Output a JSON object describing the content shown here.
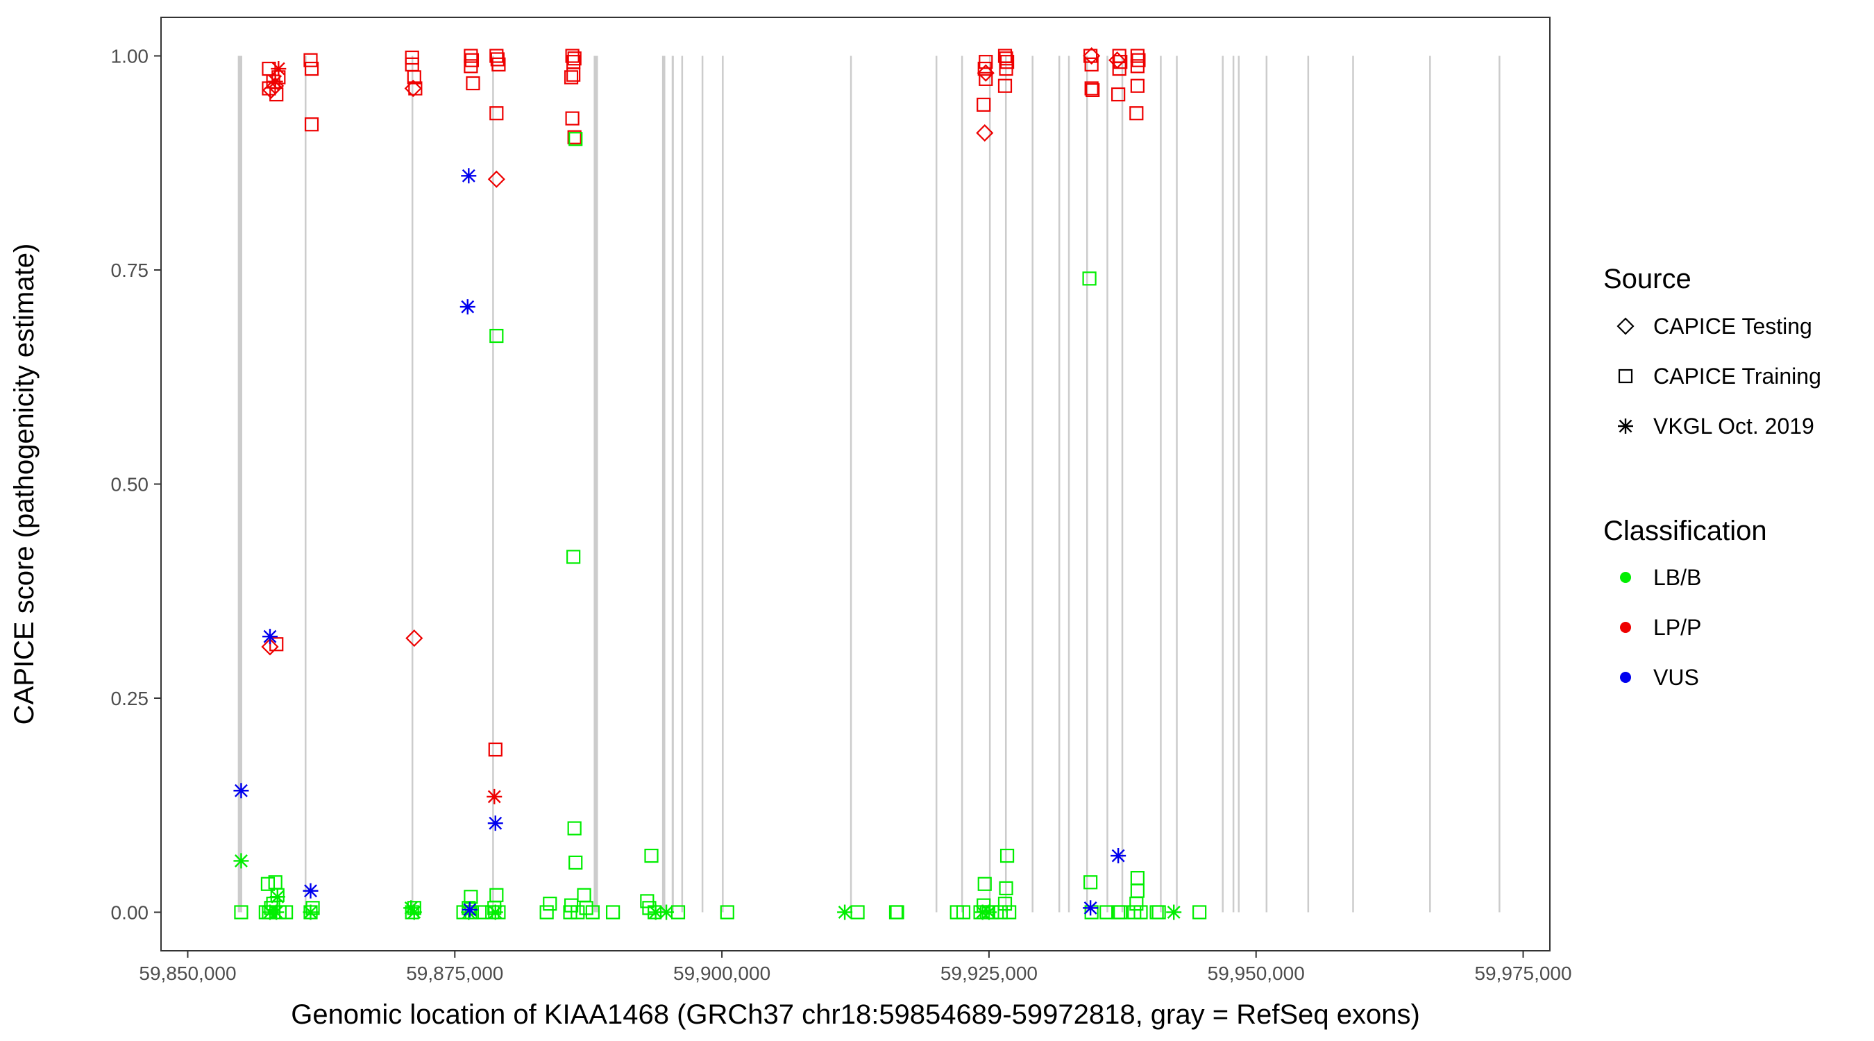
{
  "chart_data": {
    "type": "scatter",
    "xlabel": "Genomic location of KIAA1468 (GRCh37 chr18:59854689-59972818, gray = RefSeq exons)",
    "ylabel": "CAPICE score (pathogenicity estimate)",
    "xlim": [
      59847500,
      59977500
    ],
    "ylim": [
      -0.045,
      1.045
    ],
    "xticks": [
      59850000,
      59875000,
      59900000,
      59925000,
      59950000,
      59975000
    ],
    "xtick_labels": [
      "59,850,000",
      "59,875,000",
      "59,900,000",
      "59,925,000",
      "59,950,000",
      "59,975,000"
    ],
    "yticks": [
      0,
      0.25,
      0.5,
      0.75,
      1
    ],
    "ytick_labels": [
      "0.00",
      "0.25",
      "0.50",
      "0.75",
      "1.00"
    ],
    "grid": false,
    "legend_position": "right",
    "colors": {
      "LB/B": "#00ee00",
      "LP/P": "#ee0000",
      "VUS": "#0000ee",
      "exon": "#cccccc",
      "axis": "#333333"
    },
    "legend": {
      "source_title": "Source",
      "source_items": [
        {
          "label": "CAPICE Testing",
          "shape": "diamond"
        },
        {
          "label": "CAPICE Training",
          "shape": "square"
        },
        {
          "label": "VKGL Oct. 2019",
          "shape": "asterisk"
        }
      ],
      "classification_title": "Classification",
      "classification_items": [
        {
          "label": "LB/B",
          "color": "#00ee00"
        },
        {
          "label": "LP/P",
          "color": "#ee0000"
        },
        {
          "label": "VUS",
          "color": "#0000ee"
        }
      ]
    },
    "exons": [
      [
        59854689,
        59855100
      ],
      [
        59860950,
        59861100
      ],
      [
        59870950,
        59871050
      ],
      [
        59878500,
        59878600
      ],
      [
        59888000,
        59888400
      ],
      [
        59894400,
        59894700
      ],
      [
        59895300,
        59895500
      ],
      [
        59896200,
        59896350
      ],
      [
        59898100,
        59898200
      ],
      [
        59900000,
        59900100
      ],
      [
        59912000,
        59912150
      ],
      [
        59920000,
        59920100
      ],
      [
        59922400,
        59922500
      ],
      [
        59925000,
        59925150
      ],
      [
        59926500,
        59926600
      ],
      [
        59929000,
        59929100
      ],
      [
        59931500,
        59931650
      ],
      [
        59932400,
        59932500
      ],
      [
        59934100,
        59934200
      ],
      [
        59936000,
        59936100
      ],
      [
        59937400,
        59937550
      ],
      [
        59941000,
        59941100
      ],
      [
        59942500,
        59942600
      ],
      [
        59946800,
        59946900
      ],
      [
        59947800,
        59947900
      ],
      [
        59948300,
        59948400
      ],
      [
        59950900,
        59951000
      ],
      [
        59954800,
        59954900
      ],
      [
        59959000,
        59959100
      ],
      [
        59966200,
        59966300
      ],
      [
        59972700,
        59972818
      ]
    ],
    "series": [
      {
        "name": "LP/P",
        "points": [
          [
            59857800,
            0.96,
            "diamond"
          ],
          [
            59858200,
            0.965,
            "diamond"
          ],
          [
            59857700,
            0.31,
            "diamond"
          ],
          [
            59871100,
            0.962,
            "diamond"
          ],
          [
            59871200,
            0.32,
            "diamond"
          ],
          [
            59878900,
            0.856,
            "diamond"
          ],
          [
            59924600,
            0.91,
            "diamond"
          ],
          [
            59924700,
            0.98,
            "diamond"
          ],
          [
            59934600,
            1.0,
            "diamond"
          ],
          [
            59937000,
            0.995,
            "diamond"
          ],
          [
            59857600,
            0.985,
            "square"
          ],
          [
            59857600,
            0.962,
            "square"
          ],
          [
            59858000,
            0.97,
            "square"
          ],
          [
            59858300,
            0.955,
            "square"
          ],
          [
            59858500,
            0.975,
            "square"
          ],
          [
            59858300,
            0.313,
            "square"
          ],
          [
            59861500,
            0.995,
            "square"
          ],
          [
            59861600,
            0.985,
            "square"
          ],
          [
            59861600,
            0.92,
            "square"
          ],
          [
            59871000,
            0.998,
            "square"
          ],
          [
            59871000,
            0.99,
            "square"
          ],
          [
            59871200,
            0.975,
            "square"
          ],
          [
            59871300,
            0.962,
            "square"
          ],
          [
            59876500,
            1.0,
            "square"
          ],
          [
            59876600,
            0.995,
            "square"
          ],
          [
            59876500,
            0.988,
            "square"
          ],
          [
            59876700,
            0.968,
            "square"
          ],
          [
            59878900,
            1.0,
            "square"
          ],
          [
            59879000,
            0.996,
            "square"
          ],
          [
            59879100,
            0.99,
            "square"
          ],
          [
            59878900,
            0.933,
            "square"
          ],
          [
            59878800,
            0.19,
            "square"
          ],
          [
            59886000,
            1.0,
            "square"
          ],
          [
            59886200,
            0.997,
            "square"
          ],
          [
            59886100,
            0.993,
            "square"
          ],
          [
            59886100,
            0.978,
            "square"
          ],
          [
            59885900,
            0.975,
            "square"
          ],
          [
            59886000,
            0.927,
            "square"
          ],
          [
            59886200,
            0.905,
            "square"
          ],
          [
            59924700,
            0.993,
            "square"
          ],
          [
            59924600,
            0.985,
            "square"
          ],
          [
            59924700,
            0.973,
            "square"
          ],
          [
            59924500,
            0.943,
            "square"
          ],
          [
            59926500,
            1.0,
            "square"
          ],
          [
            59926600,
            0.997,
            "square"
          ],
          [
            59926700,
            0.993,
            "square"
          ],
          [
            59926600,
            0.985,
            "square"
          ],
          [
            59926500,
            0.965,
            "square"
          ],
          [
            59934500,
            1.0,
            "square"
          ],
          [
            59934600,
            0.99,
            "square"
          ],
          [
            59934600,
            0.962,
            "square"
          ],
          [
            59934700,
            0.96,
            "square"
          ],
          [
            59937200,
            1.0,
            "square"
          ],
          [
            59937300,
            0.993,
            "square"
          ],
          [
            59937200,
            0.985,
            "square"
          ],
          [
            59937100,
            0.955,
            "square"
          ],
          [
            59938900,
            1.0,
            "square"
          ],
          [
            59939000,
            0.995,
            "square"
          ],
          [
            59938900,
            0.988,
            "square"
          ],
          [
            59938900,
            0.965,
            "square"
          ],
          [
            59938800,
            0.933,
            "square"
          ],
          [
            59858500,
            0.985,
            "asterisk"
          ],
          [
            59858200,
            0.97,
            "asterisk"
          ],
          [
            59878700,
            0.135,
            "asterisk"
          ]
        ]
      },
      {
        "name": "LB/B",
        "points": [
          [
            59855000,
            0.0,
            "square"
          ],
          [
            59857300,
            0.0,
            "square"
          ],
          [
            59857500,
            0.033,
            "square"
          ],
          [
            59857600,
            0.0,
            "square"
          ],
          [
            59857800,
            0.005,
            "square"
          ],
          [
            59858000,
            0.01,
            "square"
          ],
          [
            59858200,
            0.035,
            "square"
          ],
          [
            59858400,
            0.02,
            "square"
          ],
          [
            59858600,
            0.0,
            "square"
          ],
          [
            59859200,
            0.0,
            "square"
          ],
          [
            59861500,
            0.0,
            "square"
          ],
          [
            59861700,
            0.005,
            "square"
          ],
          [
            59871000,
            0.0,
            "square"
          ],
          [
            59871200,
            0.005,
            "square"
          ],
          [
            59875800,
            0.0,
            "square"
          ],
          [
            59876300,
            0.005,
            "square"
          ],
          [
            59876500,
            0.018,
            "square"
          ],
          [
            59876600,
            0.0,
            "square"
          ],
          [
            59877600,
            0.0,
            "square"
          ],
          [
            59878500,
            0.0,
            "square"
          ],
          [
            59878700,
            0.005,
            "square"
          ],
          [
            59878900,
            0.02,
            "square"
          ],
          [
            59879100,
            0.0,
            "square"
          ],
          [
            59878900,
            0.673,
            "square"
          ],
          [
            59883600,
            0.0,
            "square"
          ],
          [
            59883900,
            0.01,
            "square"
          ],
          [
            59885800,
            0.0,
            "square"
          ],
          [
            59885900,
            0.008,
            "square"
          ],
          [
            59886100,
            0.415,
            "square"
          ],
          [
            59886200,
            0.098,
            "square"
          ],
          [
            59886300,
            0.058,
            "square"
          ],
          [
            59886300,
            0.903,
            "square"
          ],
          [
            59886500,
            0.0,
            "square"
          ],
          [
            59887100,
            0.02,
            "square"
          ],
          [
            59887300,
            0.005,
            "square"
          ],
          [
            59887900,
            0.0,
            "square"
          ],
          [
            59889800,
            0.0,
            "square"
          ],
          [
            59893000,
            0.013,
            "square"
          ],
          [
            59893200,
            0.005,
            "square"
          ],
          [
            59893400,
            0.066,
            "square"
          ],
          [
            59893700,
            0.0,
            "square"
          ],
          [
            59895900,
            0.0,
            "square"
          ],
          [
            59900500,
            0.0,
            "square"
          ],
          [
            59912700,
            0.0,
            "square"
          ],
          [
            59916300,
            0.0,
            "square"
          ],
          [
            59916400,
            0.0,
            "square"
          ],
          [
            59922000,
            0.0,
            "square"
          ],
          [
            59922600,
            0.0,
            "square"
          ],
          [
            59924200,
            0.0,
            "square"
          ],
          [
            59924500,
            0.008,
            "square"
          ],
          [
            59924600,
            0.033,
            "square"
          ],
          [
            59924800,
            0.0,
            "square"
          ],
          [
            59925300,
            0.0,
            "square"
          ],
          [
            59926100,
            0.0,
            "square"
          ],
          [
            59926500,
            0.01,
            "square"
          ],
          [
            59926600,
            0.028,
            "square"
          ],
          [
            59926700,
            0.066,
            "square"
          ],
          [
            59926900,
            0.0,
            "square"
          ],
          [
            59934400,
            0.74,
            "square"
          ],
          [
            59934500,
            0.035,
            "square"
          ],
          [
            59934600,
            0.0,
            "square"
          ],
          [
            59936000,
            0.0,
            "square"
          ],
          [
            59937100,
            0.0,
            "square"
          ],
          [
            59937300,
            0.0,
            "square"
          ],
          [
            59938600,
            0.0,
            "square"
          ],
          [
            59938800,
            0.01,
            "square"
          ],
          [
            59938900,
            0.025,
            "square"
          ],
          [
            59938900,
            0.04,
            "square"
          ],
          [
            59939200,
            0.0,
            "square"
          ],
          [
            59940700,
            0.0,
            "square"
          ],
          [
            59940900,
            0.0,
            "square"
          ],
          [
            59944700,
            0.0,
            "square"
          ],
          [
            59855000,
            0.06,
            "asterisk"
          ],
          [
            59857700,
            0.0,
            "asterisk"
          ],
          [
            59858300,
            0.0,
            "asterisk"
          ],
          [
            59858400,
            0.018,
            "asterisk"
          ],
          [
            59861500,
            0.0,
            "asterisk"
          ],
          [
            59870900,
            0.005,
            "asterisk"
          ],
          [
            59871200,
            0.0,
            "asterisk"
          ],
          [
            59876300,
            0.0,
            "asterisk"
          ],
          [
            59878800,
            0.0,
            "asterisk"
          ],
          [
            59893800,
            0.0,
            "asterisk"
          ],
          [
            59894800,
            0.0,
            "asterisk"
          ],
          [
            59911500,
            0.0,
            "asterisk"
          ],
          [
            59924400,
            0.0,
            "asterisk"
          ],
          [
            59925000,
            0.0,
            "asterisk"
          ],
          [
            59942300,
            0.0,
            "asterisk"
          ]
        ]
      },
      {
        "name": "VUS",
        "points": [
          [
            59855000,
            0.142,
            "asterisk"
          ],
          [
            59857700,
            0.322,
            "asterisk"
          ],
          [
            59861500,
            0.025,
            "asterisk"
          ],
          [
            59876300,
            0.86,
            "asterisk"
          ],
          [
            59876200,
            0.707,
            "asterisk"
          ],
          [
            59876400,
            0.003,
            "asterisk"
          ],
          [
            59878800,
            0.104,
            "asterisk"
          ],
          [
            59934500,
            0.005,
            "asterisk"
          ],
          [
            59937100,
            0.066,
            "asterisk"
          ]
        ]
      }
    ]
  }
}
